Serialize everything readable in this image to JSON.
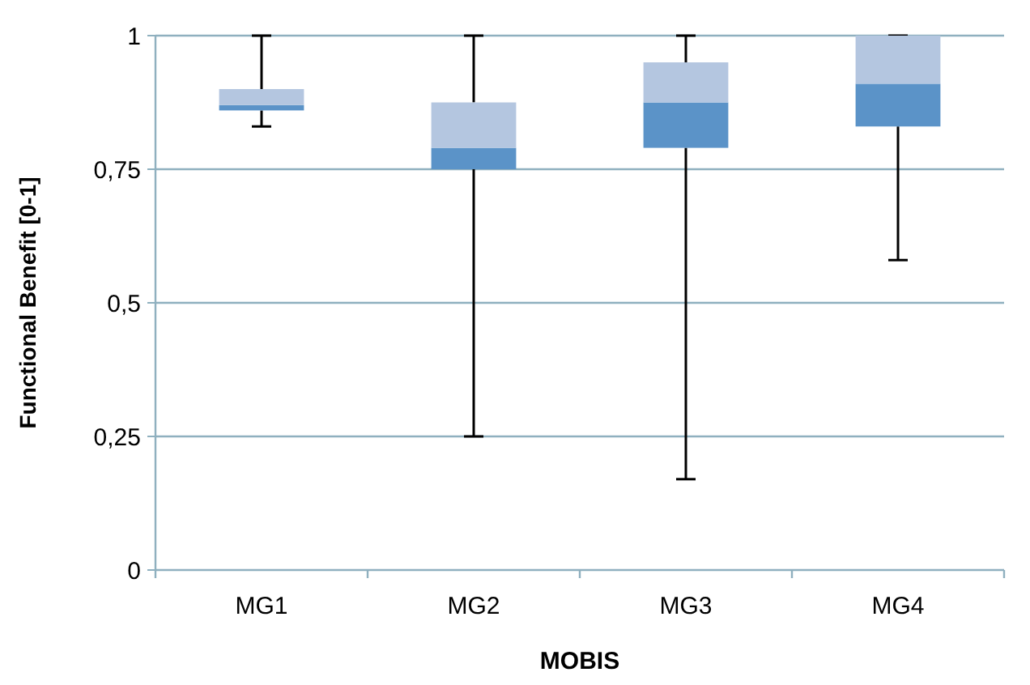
{
  "chart_data": {
    "type": "box",
    "xlabel": "MOBIS",
    "ylabel": "Functional Benefit [0-1]",
    "categories": [
      "MG1",
      "MG2",
      "MG3",
      "MG4"
    ],
    "boxes": [
      {
        "low": 0.83,
        "q1": 0.86,
        "median": 0.87,
        "q3": 0.9,
        "high": 1
      },
      {
        "low": 0.25,
        "q1": 0.75,
        "median": 0.79,
        "q3": 0.875,
        "high": 1
      },
      {
        "low": 0.17,
        "q1": 0.79,
        "median": 0.875,
        "q3": 0.95,
        "high": 1
      },
      {
        "low": 0.58,
        "q1": 0.83,
        "median": 0.91,
        "q3": 1,
        "high": 1
      }
    ],
    "colors": [
      "#5b93c8",
      "#5b93c8",
      "#5b93c8",
      "#5b93c8"
    ],
    "color": "#b4c6e0",
    "ylim": [
      0,
      1
    ],
    "yticks": [
      0,
      {
        "value": 0.25,
        "label": "0,25"
      },
      {
        "value": 0.5,
        "label": "0,5"
      },
      {
        "value": 0.75,
        "label": "0,75"
      },
      1
    ],
    "grid": "y"
  }
}
